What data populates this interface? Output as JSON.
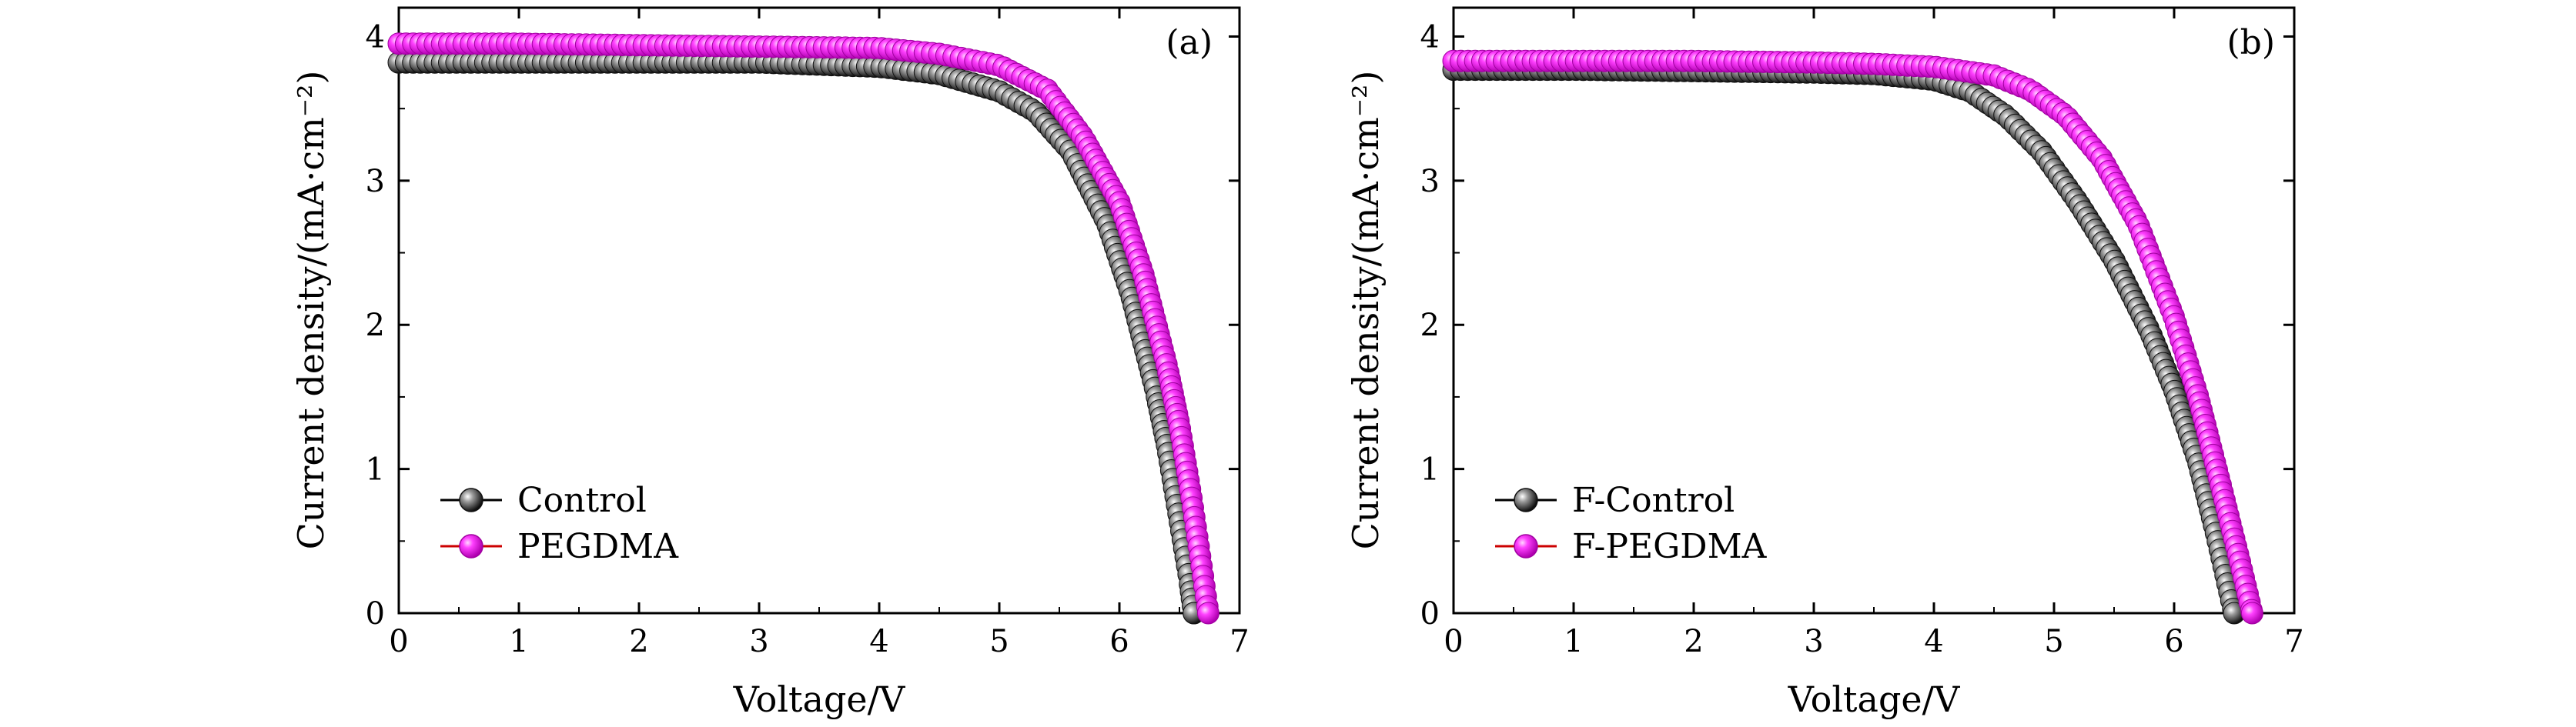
{
  "figure": {
    "panel_a_label": "(a)",
    "panel_b_label": "(b)"
  },
  "colors": {
    "control": "#2a2a2a",
    "pegdma": "#e000e0",
    "legend_line_control": "#000000",
    "legend_line_pegdma": "#cc0000"
  },
  "chart_data": [
    {
      "type": "scatter",
      "panel": "(a)",
      "xlabel": "Voltage/V",
      "ylabel": "Current density/(mA·cm⁻²)",
      "xlim": [
        0,
        7
      ],
      "ylim": [
        0,
        4.2
      ],
      "xticks": [
        0,
        1,
        2,
        3,
        4,
        5,
        6,
        7
      ],
      "yticks": [
        0,
        1,
        2,
        3,
        4
      ],
      "legend_position": "bottom-left",
      "grid": false,
      "series": [
        {
          "name": "Control",
          "color": "#2a2a2a",
          "x": [
            0,
            1,
            2,
            3,
            4,
            4.5,
            5.0,
            5.3,
            5.6,
            5.9,
            6.1,
            6.3,
            6.4,
            6.5,
            6.58,
            6.62
          ],
          "y": [
            3.82,
            3.82,
            3.82,
            3.82,
            3.79,
            3.74,
            3.62,
            3.48,
            3.2,
            2.7,
            2.2,
            1.55,
            1.15,
            0.65,
            0.25,
            0.0
          ]
        },
        {
          "name": "PEGDMA",
          "color": "#e000e0",
          "x": [
            0,
            1,
            2,
            3,
            4,
            4.5,
            5.0,
            5.4,
            5.7,
            6.0,
            6.2,
            6.4,
            6.5,
            6.6,
            6.68,
            6.74
          ],
          "y": [
            3.95,
            3.95,
            3.94,
            3.93,
            3.92,
            3.88,
            3.8,
            3.63,
            3.3,
            2.85,
            2.35,
            1.7,
            1.3,
            0.8,
            0.35,
            0.0
          ]
        }
      ]
    },
    {
      "type": "scatter",
      "panel": "(b)",
      "xlabel": "Voltage/V",
      "ylabel": "Current density/(mA·cm⁻²)",
      "xlim": [
        0,
        7
      ],
      "ylim": [
        0,
        4.2
      ],
      "xticks": [
        0,
        1,
        2,
        3,
        4,
        5,
        6,
        7
      ],
      "yticks": [
        0,
        1,
        2,
        3,
        4
      ],
      "legend_position": "bottom-left",
      "grid": false,
      "series": [
        {
          "name": "F-Control",
          "color": "#2a2a2a",
          "x": [
            0,
            1,
            2,
            3,
            3.5,
            4.0,
            4.3,
            4.6,
            4.9,
            5.2,
            5.5,
            5.8,
            6.0,
            6.2,
            6.35,
            6.5
          ],
          "y": [
            3.77,
            3.77,
            3.76,
            3.75,
            3.74,
            3.7,
            3.62,
            3.45,
            3.2,
            2.85,
            2.45,
            1.95,
            1.55,
            1.05,
            0.55,
            0.0
          ]
        },
        {
          "name": "F-PEGDMA",
          "color": "#e000e0",
          "x": [
            0,
            1,
            2,
            3,
            3.5,
            4.0,
            4.5,
            4.8,
            5.1,
            5.4,
            5.7,
            6.0,
            6.2,
            6.4,
            6.55,
            6.65
          ],
          "y": [
            3.83,
            3.83,
            3.83,
            3.82,
            3.81,
            3.79,
            3.73,
            3.63,
            3.45,
            3.15,
            2.7,
            2.05,
            1.5,
            0.85,
            0.35,
            0.0
          ]
        }
      ]
    }
  ]
}
